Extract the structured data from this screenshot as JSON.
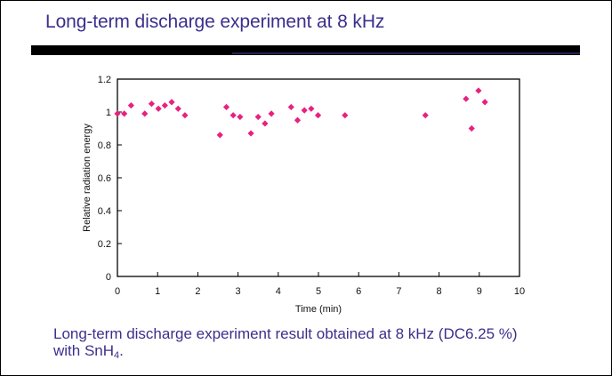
{
  "slide": {
    "title": "Long-term discharge experiment at 8 kHz",
    "caption_line1": "Long-term discharge experiment result obtained at 8 kHz (DC6.25 %)",
    "caption_line2_prefix": "with SnH",
    "caption_line2_sub": "4",
    "caption_line2_suffix": "."
  },
  "colors": {
    "title": "#3b2f8c",
    "marker": "#e8217f",
    "axis": "#000000"
  },
  "chart_data": {
    "type": "scatter",
    "title": "",
    "xlabel": "Time (min)",
    "ylabel": "Relative radiation energy",
    "xlim": [
      0,
      10
    ],
    "ylim": [
      0,
      1.2
    ],
    "xticks": [
      "0",
      "1",
      "2",
      "3",
      "4",
      "5",
      "6",
      "7",
      "8",
      "9",
      "10"
    ],
    "yticks": [
      "0",
      "0.2",
      "0.4",
      "0.6",
      "0.8",
      "1",
      "1.2"
    ],
    "grid": false,
    "legend": "none",
    "marker": "diamond",
    "series": [
      {
        "name": "Relative radiation energy",
        "x": [
          0.0,
          0.17,
          0.34,
          0.68,
          0.85,
          1.02,
          1.18,
          1.35,
          1.51,
          1.68,
          2.55,
          2.71,
          2.88,
          3.05,
          3.32,
          3.5,
          3.67,
          3.83,
          4.32,
          4.48,
          4.65,
          4.82,
          4.99,
          5.66,
          7.66,
          8.67,
          8.81,
          8.98,
          9.14
        ],
        "y": [
          0.99,
          0.99,
          1.04,
          0.99,
          1.05,
          1.02,
          1.04,
          1.06,
          1.02,
          0.98,
          0.86,
          1.03,
          0.98,
          0.97,
          0.87,
          0.97,
          0.93,
          0.99,
          1.03,
          0.95,
          1.01,
          1.02,
          0.98,
          0.98,
          0.98,
          1.08,
          0.9,
          1.13,
          1.06
        ]
      }
    ]
  }
}
